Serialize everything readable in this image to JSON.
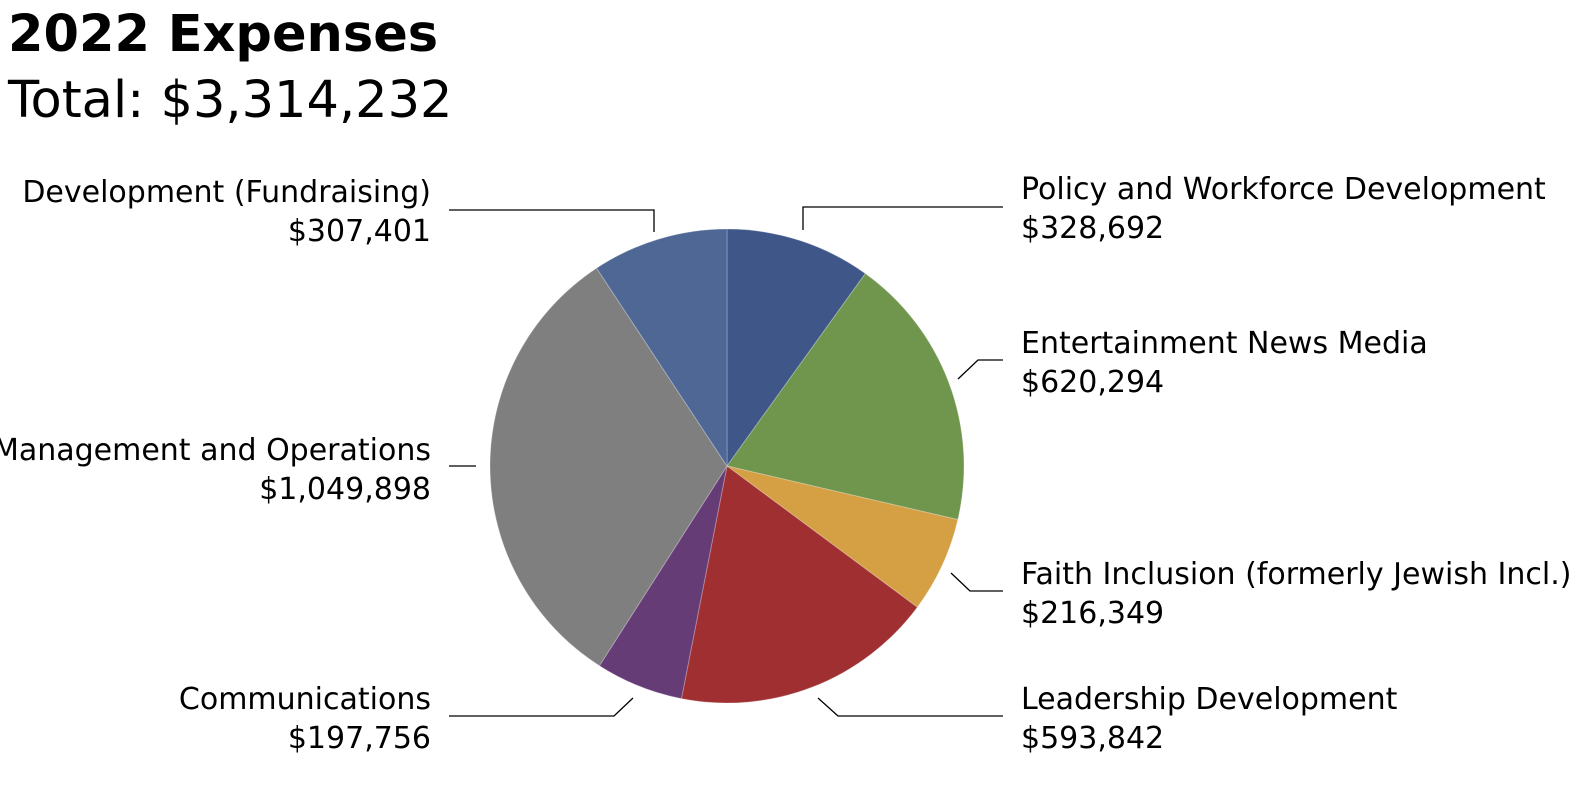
{
  "chart_data": {
    "type": "pie",
    "title": "2022 Expenses",
    "subtitle": "Total: $3,314,232",
    "start_angle_deg": 0,
    "direction": "clockwise",
    "slices": [
      {
        "label": "Policy and Workforce Development",
        "value_label": "$328,692",
        "value": 328692,
        "color": "#3f5688"
      },
      {
        "label": "Entertainment News Media",
        "value_label": "$620,294",
        "value": 620294,
        "color": "#70964e"
      },
      {
        "label": "Faith Inclusion (formerly Jewish Incl.)",
        "value_label": "$216,349",
        "value": 216349,
        "color": "#d59f44"
      },
      {
        "label": "Leadership Development",
        "value_label": "$593,842",
        "value": 593842,
        "color": "#a02f32"
      },
      {
        "label": "Communications",
        "value_label": "$197,756",
        "value": 197756,
        "color": "#653c76"
      },
      {
        "label": "Management and Operations",
        "value_label": "$1,049,898",
        "value": 1049898,
        "color": "#7f7f7f"
      },
      {
        "label": "Development (Fundraising)",
        "value_label": "$307,401",
        "value": 307401,
        "color": "#4f6794"
      }
    ]
  }
}
